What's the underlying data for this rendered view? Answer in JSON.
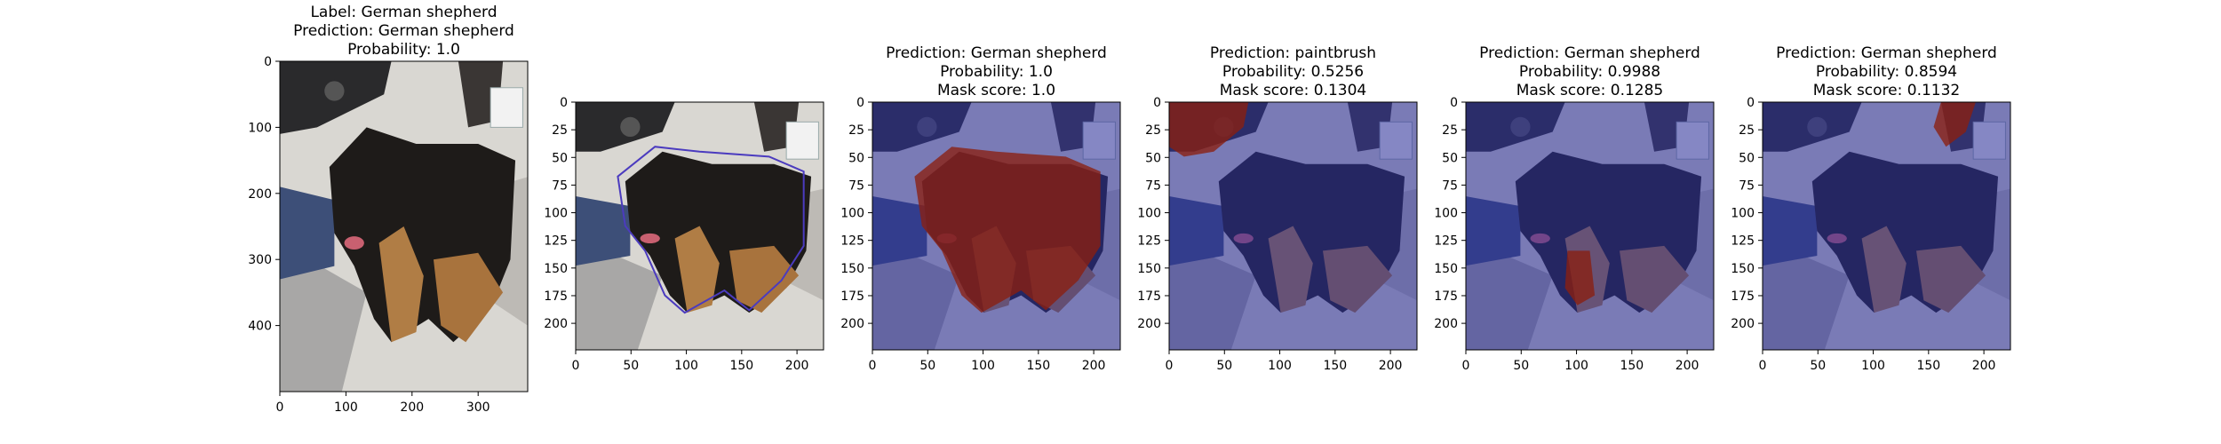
{
  "figure": {
    "panels": [
      {
        "kind": "original",
        "title_lines": [
          "Label: German shepherd",
          "Prediction: German shepherd",
          "Probability: 1.0"
        ],
        "x_ticks": [
          "0",
          "100",
          "200",
          "300"
        ],
        "y_ticks": [
          "0",
          "100",
          "200",
          "300",
          "400"
        ],
        "overlay": "none"
      },
      {
        "kind": "contour",
        "title_lines": [],
        "x_ticks": [
          "0",
          "50",
          "100",
          "150",
          "200"
        ],
        "y_ticks": [
          "0",
          "25",
          "50",
          "75",
          "100",
          "125",
          "150",
          "175",
          "200"
        ],
        "overlay": "contour"
      },
      {
        "kind": "mask",
        "title_lines": [
          "Prediction: German shepherd",
          "Probability: 1.0",
          "Mask score: 1.0"
        ],
        "x_ticks": [
          "0",
          "50",
          "100",
          "150",
          "200"
        ],
        "y_ticks": [
          "0",
          "25",
          "50",
          "75",
          "100",
          "125",
          "150",
          "175",
          "200"
        ],
        "overlay": "mask-dog"
      },
      {
        "kind": "mask",
        "title_lines": [
          "Prediction: paintbrush",
          "Probability: 0.5256",
          "Mask score: 0.1304"
        ],
        "x_ticks": [
          "0",
          "50",
          "100",
          "150",
          "200"
        ],
        "y_ticks": [
          "0",
          "25",
          "50",
          "75",
          "100",
          "125",
          "150",
          "175",
          "200"
        ],
        "overlay": "mask-top-left"
      },
      {
        "kind": "mask",
        "title_lines": [
          "Prediction: German shepherd",
          "Probability: 0.9988",
          "Mask score: 0.1285"
        ],
        "x_ticks": [
          "0",
          "50",
          "100",
          "150",
          "200"
        ],
        "y_ticks": [
          "0",
          "25",
          "50",
          "75",
          "100",
          "125",
          "150",
          "175",
          "200"
        ],
        "overlay": "mask-front-paw"
      },
      {
        "kind": "mask",
        "title_lines": [
          "Prediction: German shepherd",
          "Probability: 0.8594",
          "Mask score: 0.1132"
        ],
        "x_ticks": [
          "0",
          "50",
          "100",
          "150",
          "200"
        ],
        "y_ticks": [
          "0",
          "25",
          "50",
          "75",
          "100",
          "125",
          "150",
          "175",
          "200"
        ],
        "overlay": "mask-top-right"
      }
    ],
    "colors": {
      "mask_tint": "#2b2f9e",
      "mask_red": "#8a1f0f",
      "contour": "#4b3bbf"
    }
  }
}
